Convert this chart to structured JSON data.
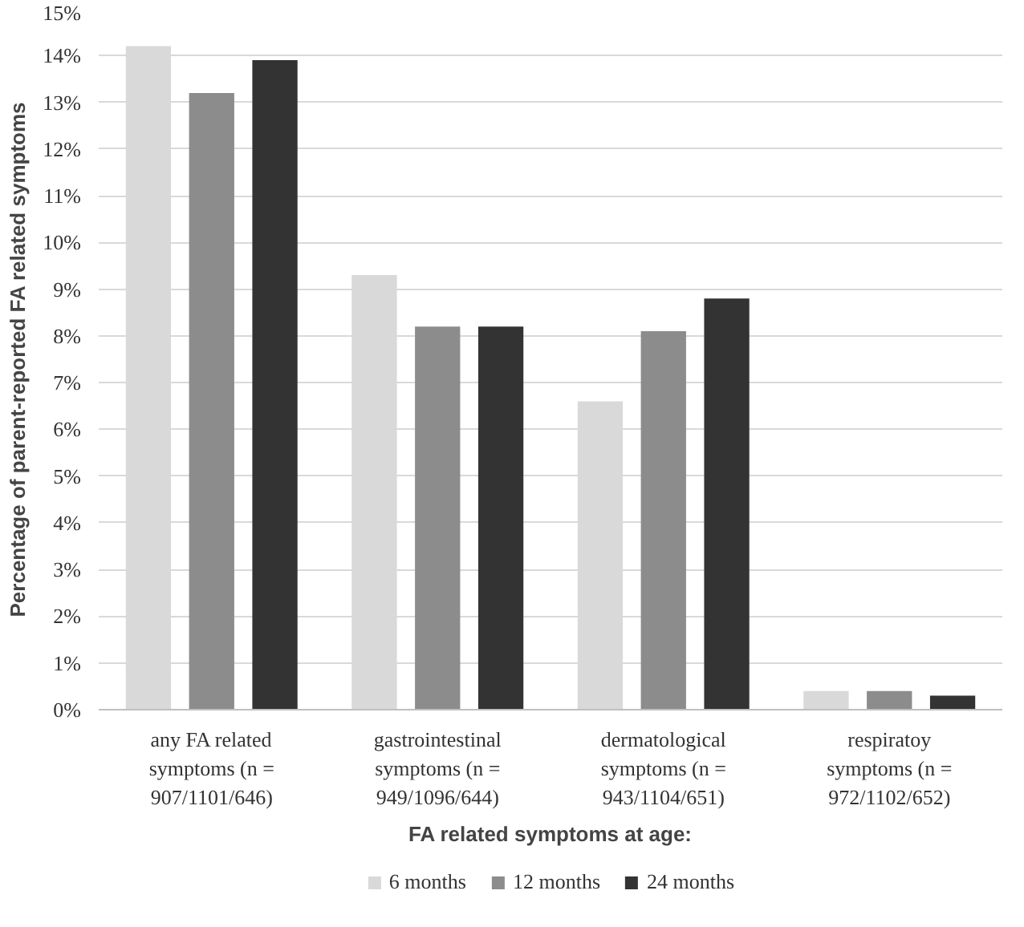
{
  "chart_data": {
    "type": "bar",
    "xlabel": "FA related symptoms at age:",
    "ylabel": "Percentage of parent-reported FA related symptoms",
    "categories": [
      "any FA related symptoms (n = 907/1101/646)",
      "gastrointestinal symptoms (n = 949/1096/644)",
      "dermatological symptoms (n = 943/1104/651)",
      "respiratoy symptoms (n = 972/1102/652)"
    ],
    "series": [
      {
        "name": "6 months",
        "color": "#d9d9d9",
        "values": [
          14.2,
          9.3,
          6.6,
          0.4
        ]
      },
      {
        "name": "12 months",
        "color": "#8c8c8c",
        "values": [
          13.2,
          8.2,
          8.1,
          0.4
        ]
      },
      {
        "name": "24 months",
        "color": "#333333",
        "values": [
          13.9,
          8.2,
          8.8,
          0.3
        ]
      }
    ],
    "ylim": [
      0,
      15
    ],
    "yticks": [
      {
        "value": 0,
        "label": "0%"
      },
      {
        "value": 1,
        "label": "1%"
      },
      {
        "value": 2,
        "label": "2%"
      },
      {
        "value": 3,
        "label": "3%"
      },
      {
        "value": 4,
        "label": "4%"
      },
      {
        "value": 5,
        "label": "5%"
      },
      {
        "value": 6,
        "label": "6%"
      },
      {
        "value": 7,
        "label": "7%"
      },
      {
        "value": 8,
        "label": "8%"
      },
      {
        "value": 9,
        "label": "9%"
      },
      {
        "value": 10,
        "label": "10%"
      },
      {
        "value": 11,
        "label": "11%"
      },
      {
        "value": 12,
        "label": "12%"
      },
      {
        "value": 13,
        "label": "13%"
      },
      {
        "value": 14,
        "label": "14%"
      },
      {
        "value": 15,
        "label": "15%"
      }
    ],
    "grid": "y",
    "legend": "bottom"
  }
}
